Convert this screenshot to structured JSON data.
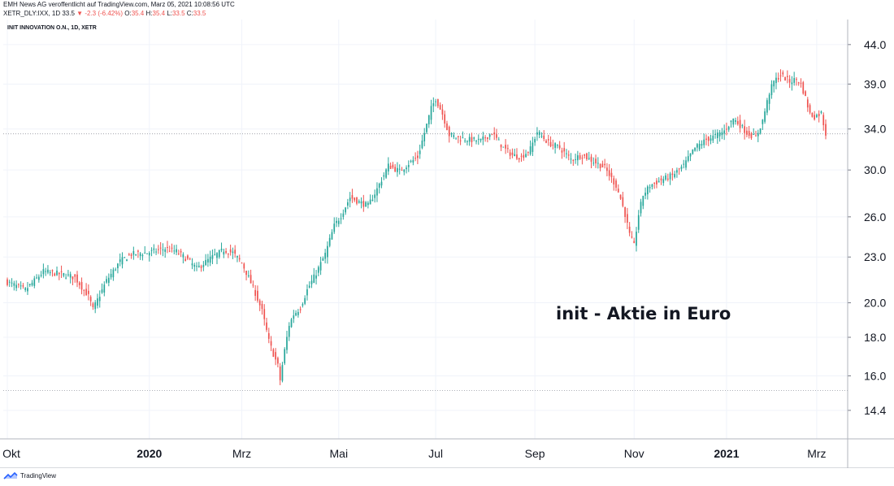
{
  "header": {
    "line1": "EMH News AG veroffentlicht auf TradingView.com, Marz 05, 2021 10:08:56 UTC",
    "ticker": "XETR_DLY:IXX, 1D",
    "last": "33.5",
    "arrow": "▼",
    "change": "-2.3 (-6.42%)",
    "o_label": "O:",
    "o_val": "35.4",
    "h_label": "H:",
    "h_val": "35.4",
    "l_label": "L:",
    "l_val": "33.5",
    "c_label": "C:",
    "c_val": "33.5"
  },
  "symbol_title": "INIT INNOVATION O.N., 1D, XETR",
  "annotation": "init - Aktie in Euro",
  "footer": {
    "brand": "TradingView",
    "brand_icon": "tradingview-logo-icon"
  },
  "colors": {
    "up": "#26a69a",
    "down": "#ef5350",
    "grid": "#f0f3fa",
    "axis": "#131722"
  },
  "chart_data": {
    "type": "candlestick",
    "title": "",
    "xlabel": "",
    "ylabel": "",
    "y_scale": "log",
    "ylim": [
      13.2,
      47.5
    ],
    "y_ticks": [
      "44.0",
      "39.0",
      "34.0",
      "30.0",
      "26.0",
      "23.0",
      "20.0",
      "18.0",
      "16.0",
      "14.4"
    ],
    "x_ticks": [
      {
        "label": "Okt",
        "bold": false,
        "index": 0
      },
      {
        "label": "2020",
        "bold": true,
        "index": 63
      },
      {
        "label": "Mrz",
        "bold": false,
        "index": 104
      },
      {
        "label": "Mai",
        "bold": false,
        "index": 147
      },
      {
        "label": "Jul",
        "bold": false,
        "index": 190
      },
      {
        "label": "Sep",
        "bold": false,
        "index": 234
      },
      {
        "label": "Nov",
        "bold": false,
        "index": 278
      },
      {
        "label": "2021",
        "bold": true,
        "index": 319
      },
      {
        "label": "Mrz",
        "bold": false,
        "index": 359
      }
    ],
    "reference_lines": [
      33.5,
      15.3
    ],
    "anchors": [
      [
        0,
        21.3
      ],
      [
        8,
        20.8
      ],
      [
        16,
        22.0
      ],
      [
        25,
        21.8
      ],
      [
        30,
        21.6
      ],
      [
        36,
        20.4
      ],
      [
        38,
        19.6
      ],
      [
        44,
        21.4
      ],
      [
        50,
        22.7
      ],
      [
        55,
        23.2
      ],
      [
        62,
        23.3
      ],
      [
        70,
        23.6
      ],
      [
        75,
        23.4
      ],
      [
        80,
        22.8
      ],
      [
        84,
        22.2
      ],
      [
        90,
        22.9
      ],
      [
        96,
        23.5
      ],
      [
        100,
        23.3
      ],
      [
        104,
        22.6
      ],
      [
        107,
        21.6
      ],
      [
        110,
        20.6
      ],
      [
        113,
        19.5
      ],
      [
        116,
        17.8
      ],
      [
        118,
        17.1
      ],
      [
        120,
        16.5
      ],
      [
        121,
        15.8
      ],
      [
        123,
        17.3
      ],
      [
        125,
        18.7
      ],
      [
        127,
        19.3
      ],
      [
        130,
        19.7
      ],
      [
        133,
        20.8
      ],
      [
        137,
        21.9
      ],
      [
        141,
        23.2
      ],
      [
        145,
        25.3
      ],
      [
        148,
        26.1
      ],
      [
        152,
        27.6
      ],
      [
        156,
        27.2
      ],
      [
        160,
        26.9
      ],
      [
        164,
        28.3
      ],
      [
        169,
        30.4
      ],
      [
        174,
        29.9
      ],
      [
        178,
        30.6
      ],
      [
        182,
        31.2
      ],
      [
        185,
        33.6
      ],
      [
        188,
        36.2
      ],
      [
        190,
        37.3
      ],
      [
        193,
        35.6
      ],
      [
        196,
        33.4
      ],
      [
        200,
        33.1
      ],
      [
        205,
        32.9
      ],
      [
        210,
        32.8
      ],
      [
        215,
        33.6
      ],
      [
        220,
        32.1
      ],
      [
        224,
        31.4
      ],
      [
        228,
        31.2
      ],
      [
        232,
        32.0
      ],
      [
        235,
        33.7
      ],
      [
        240,
        32.6
      ],
      [
        245,
        32.1
      ],
      [
        250,
        31.0
      ],
      [
        255,
        31.4
      ],
      [
        260,
        30.8
      ],
      [
        265,
        30.2
      ],
      [
        270,
        28.6
      ],
      [
        272,
        27.5
      ],
      [
        274,
        26.2
      ],
      [
        276,
        24.6
      ],
      [
        278,
        23.8
      ],
      [
        280,
        26.2
      ],
      [
        282,
        27.8
      ],
      [
        285,
        28.6
      ],
      [
        290,
        29.1
      ],
      [
        295,
        29.5
      ],
      [
        300,
        30.4
      ],
      [
        305,
        32.1
      ],
      [
        310,
        32.9
      ],
      [
        315,
        33.4
      ],
      [
        318,
        33.8
      ],
      [
        322,
        35.1
      ],
      [
        325,
        34.4
      ],
      [
        328,
        33.6
      ],
      [
        332,
        33.1
      ],
      [
        335,
        34.9
      ],
      [
        338,
        38.0
      ],
      [
        340,
        39.3
      ],
      [
        343,
        40.1
      ],
      [
        347,
        39.3
      ],
      [
        350,
        39.6
      ],
      [
        352,
        39.0
      ],
      [
        354,
        37.4
      ],
      [
        356,
        35.6
      ],
      [
        358,
        35.3
      ],
      [
        361,
        35.7
      ],
      [
        363,
        33.5
      ]
    ]
  }
}
